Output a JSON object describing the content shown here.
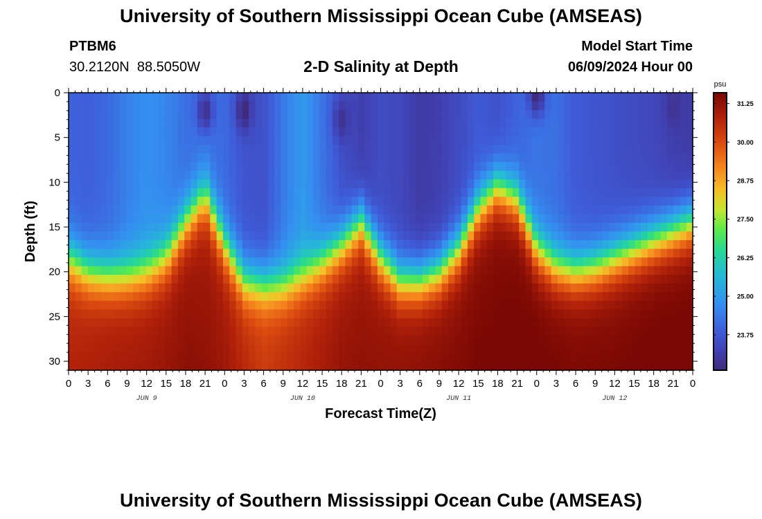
{
  "page": {
    "title_top": "University of Southern Mississippi Ocean Cube (AMSEAS)",
    "title_bottom": "University of Southern Mississippi Ocean Cube (AMSEAS)",
    "station_id": "PTBM6",
    "coordinates": "30.2120N  88.5050W",
    "chart_title": "2-D Salinity at Depth",
    "model_start_label": "Model Start Time",
    "model_start_value": "06/09/2024 Hour 00"
  },
  "chart_data": {
    "type": "heatmap",
    "title": "2-D Salinity at Depth",
    "xlabel": "Forecast Time(Z)",
    "ylabel": "Depth (ft)",
    "x_unit": "hours from model start",
    "xlim": [
      0,
      96
    ],
    "ylim": [
      31,
      0
    ],
    "x_tick_hours": [
      0,
      3,
      6,
      9,
      12,
      15,
      18,
      21,
      24,
      27,
      30,
      33,
      36,
      39,
      42,
      45,
      48,
      51,
      54,
      57,
      60,
      63,
      66,
      69,
      72,
      75,
      78,
      81,
      84,
      87,
      90,
      93,
      96
    ],
    "x_tick_labels": [
      "0",
      "3",
      "6",
      "9",
      "12",
      "15",
      "18",
      "21",
      "0",
      "3",
      "6",
      "9",
      "12",
      "15",
      "18",
      "21",
      "0",
      "3",
      "6",
      "9",
      "12",
      "15",
      "18",
      "21",
      "0",
      "3",
      "6",
      "9",
      "12",
      "15",
      "18",
      "21",
      "0"
    ],
    "day_labels": [
      {
        "label": "JUN 9",
        "hour": 12
      },
      {
        "label": "JUN 10",
        "hour": 36
      },
      {
        "label": "JUN 11",
        "hour": 60
      },
      {
        "label": "JUN 12",
        "hour": 84
      }
    ],
    "y_ticks": [
      0,
      5,
      10,
      15,
      20,
      25,
      30
    ],
    "y_tick_labels": [
      "0",
      "5",
      "10",
      "15",
      "20",
      "25",
      "30"
    ],
    "colorbar": {
      "unit": "psu",
      "min": 22.6,
      "max": 31.6,
      "ticks": [
        31.25,
        30.0,
        28.75,
        27.5,
        26.25,
        25.0,
        23.75
      ],
      "tick_labels": [
        "31.25",
        "30.00",
        "28.75",
        "27.50",
        "26.25",
        "25.00",
        "23.75"
      ]
    },
    "halocline_depth_ft": {
      "hours": [
        0,
        3,
        6,
        9,
        12,
        15,
        18,
        21,
        24,
        27,
        30,
        33,
        36,
        39,
        42,
        45,
        48,
        51,
        54,
        57,
        60,
        63,
        66,
        69,
        72,
        75,
        78,
        81,
        84,
        87,
        90,
        93,
        96
      ],
      "depth": [
        18.5,
        20.0,
        20.5,
        20.5,
        20.0,
        18.5,
        14.5,
        11.5,
        17.0,
        21.0,
        21.5,
        21.5,
        20.5,
        19.0,
        17.0,
        14.5,
        18.5,
        21.0,
        21.0,
        20.0,
        17.5,
        13.0,
        10.5,
        12.0,
        17.5,
        19.5,
        20.0,
        19.5,
        18.5,
        17.5,
        16.5,
        15.5,
        14.5
      ]
    },
    "surface_salinity_psu": {
      "hours": [
        0,
        3,
        6,
        9,
        12,
        15,
        18,
        21,
        24,
        27,
        30,
        33,
        36,
        39,
        42,
        45,
        48,
        51,
        54,
        57,
        60,
        63,
        66,
        69,
        72,
        75,
        78,
        81,
        84,
        87,
        90,
        93,
        96
      ],
      "value": [
        24.0,
        23.9,
        24.1,
        24.5,
        24.8,
        24.6,
        24.2,
        24.3,
        24.1,
        23.7,
        23.6,
        24.4,
        25.0,
        24.3,
        23.6,
        23.2,
        23.5,
        23.4,
        23.1,
        23.2,
        23.5,
        23.8,
        23.6,
        24.0,
        24.3,
        24.2,
        23.8,
        23.7,
        23.6,
        23.5,
        23.4,
        23.2,
        23.1
      ]
    },
    "bottom_salinity_psu": {
      "hours": [
        0,
        6,
        12,
        18,
        24,
        30,
        36,
        42,
        48,
        54,
        60,
        66,
        72,
        78,
        84,
        90,
        96
      ],
      "value": [
        30.6,
        30.8,
        30.9,
        31.1,
        30.9,
        30.2,
        30.6,
        31.0,
        31.1,
        31.2,
        31.3,
        31.4,
        31.5,
        31.4,
        31.4,
        31.5,
        31.5
      ]
    },
    "low_salinity_patches": [
      {
        "hour": 21,
        "depth_ft": 2.0,
        "psu": 22.8
      },
      {
        "hour": 27,
        "depth_ft": 2.0,
        "psu": 22.6
      },
      {
        "hour": 42,
        "depth_ft": 3.0,
        "psu": 22.9
      },
      {
        "hour": 72,
        "depth_ft": 0.2,
        "psu": 22.6
      },
      {
        "hour": 93,
        "depth_ft": 1.5,
        "psu": 22.9
      }
    ]
  }
}
